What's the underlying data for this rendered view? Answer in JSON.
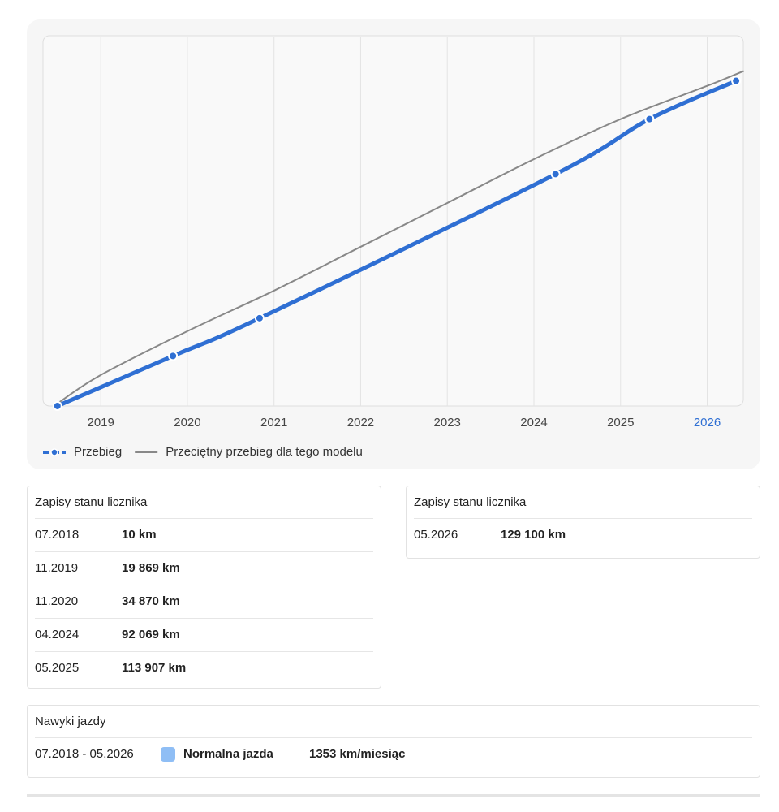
{
  "chart_data": {
    "type": "line",
    "xlim": [
      "05.2018",
      "06.2026"
    ],
    "xticks": [
      2019,
      2020,
      2021,
      2022,
      2023,
      2024,
      2025,
      2026
    ],
    "highlight_xtick": 2026,
    "highlight_color": "#2f6fd3",
    "ylim": [
      0,
      147000
    ],
    "grid": true,
    "series": [
      {
        "name": "Przebieg",
        "color": "#2f6fd3",
        "x": [
          "07.2018",
          "11.2019",
          "11.2020",
          "04.2024",
          "05.2025",
          "05.2026"
        ],
        "values": [
          10,
          19869,
          34870,
          92069,
          113907,
          129100
        ],
        "value_labels": [
          "10 km",
          "19 869 km",
          "34 870 km",
          "92 069 km",
          "113 907 km",
          "129 100 km"
        ]
      },
      {
        "name": "Przeciętny przebieg dla tego modelu",
        "color": "#888888",
        "x": [
          "07.2018",
          "01.2019",
          "01.2020",
          "01.2021",
          "01.2022",
          "01.2023",
          "01.2024",
          "01.2025",
          "01.2026",
          "06.2026"
        ],
        "values": [
          1000,
          12300,
          29700,
          45800,
          63200,
          80600,
          98000,
          113900,
          127100,
          132900
        ]
      }
    ]
  },
  "records_cards": [
    {
      "title": "Zapisy stanu licznika"
    },
    {
      "title": "Zapisy stanu licznika"
    }
  ],
  "driving": {
    "title": "Nawyki jazdy",
    "period": "07.2018 - 05.2026",
    "label": "Normalna jazda",
    "color": "#8fbef5",
    "rate": "1353 km/miesiąc"
  }
}
